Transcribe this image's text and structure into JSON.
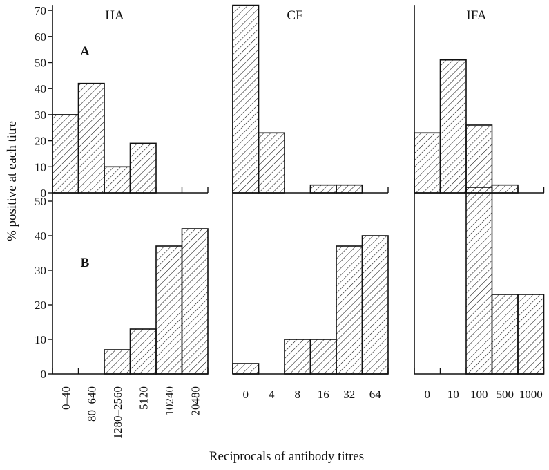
{
  "figure": {
    "ylabel": "% positive at each titre",
    "xlabel": "Reciprocals of antibody titres"
  },
  "chart_data": [
    {
      "type": "bar",
      "panel": "HA",
      "row": "A",
      "title": "HA",
      "row_label": "A",
      "categories": [
        "0–40",
        "80–640",
        "1280–2560",
        "5120",
        "10240",
        "20480"
      ],
      "values": [
        30,
        42,
        10,
        19,
        0,
        0
      ],
      "ylim": [
        0,
        70
      ],
      "yticks": [
        0,
        10,
        20,
        30,
        40,
        50,
        60,
        70
      ],
      "show_tick_labels": false
    },
    {
      "type": "bar",
      "panel": "CF",
      "row": "A",
      "title": "CF",
      "row_label": "",
      "categories": [
        "0",
        "4",
        "8",
        "16",
        "32",
        "64"
      ],
      "values": [
        72,
        23,
        0,
        3,
        3,
        0
      ],
      "ylim": [
        0,
        70
      ],
      "show_tick_labels": false
    },
    {
      "type": "bar",
      "panel": "IFA",
      "row": "A",
      "title": "IFA",
      "row_label": "",
      "categories": [
        "0",
        "10",
        "100",
        "500",
        "1000"
      ],
      "values": [
        23,
        51,
        26,
        3,
        0
      ],
      "ylim": [
        0,
        70
      ],
      "show_tick_labels": false
    },
    {
      "type": "bar",
      "panel": "HA",
      "row": "B",
      "title": "",
      "row_label": "B",
      "categories": [
        "0–40",
        "80–640",
        "1280–2560",
        "5120",
        "10240",
        "20480"
      ],
      "values": [
        0,
        0,
        7,
        13,
        37,
        42
      ],
      "ylim": [
        0,
        55
      ],
      "yticks": [
        0,
        10,
        20,
        30,
        40,
        50
      ],
      "show_tick_labels": true,
      "rotated_labels": true
    },
    {
      "type": "bar",
      "panel": "CF",
      "row": "B",
      "title": "",
      "row_label": "",
      "categories": [
        "0",
        "4",
        "8",
        "16",
        "32",
        "64"
      ],
      "values": [
        3,
        0,
        10,
        10,
        37,
        40
      ],
      "ylim": [
        0,
        55
      ],
      "show_tick_labels": true
    },
    {
      "type": "bar",
      "panel": "IFA",
      "row": "B",
      "title": "",
      "row_label": "",
      "categories": [
        "0",
        "10",
        "100",
        "500",
        "1000"
      ],
      "values": [
        0,
        0,
        54,
        23,
        23
      ],
      "ylim": [
        0,
        55
      ],
      "show_tick_labels": true
    }
  ]
}
